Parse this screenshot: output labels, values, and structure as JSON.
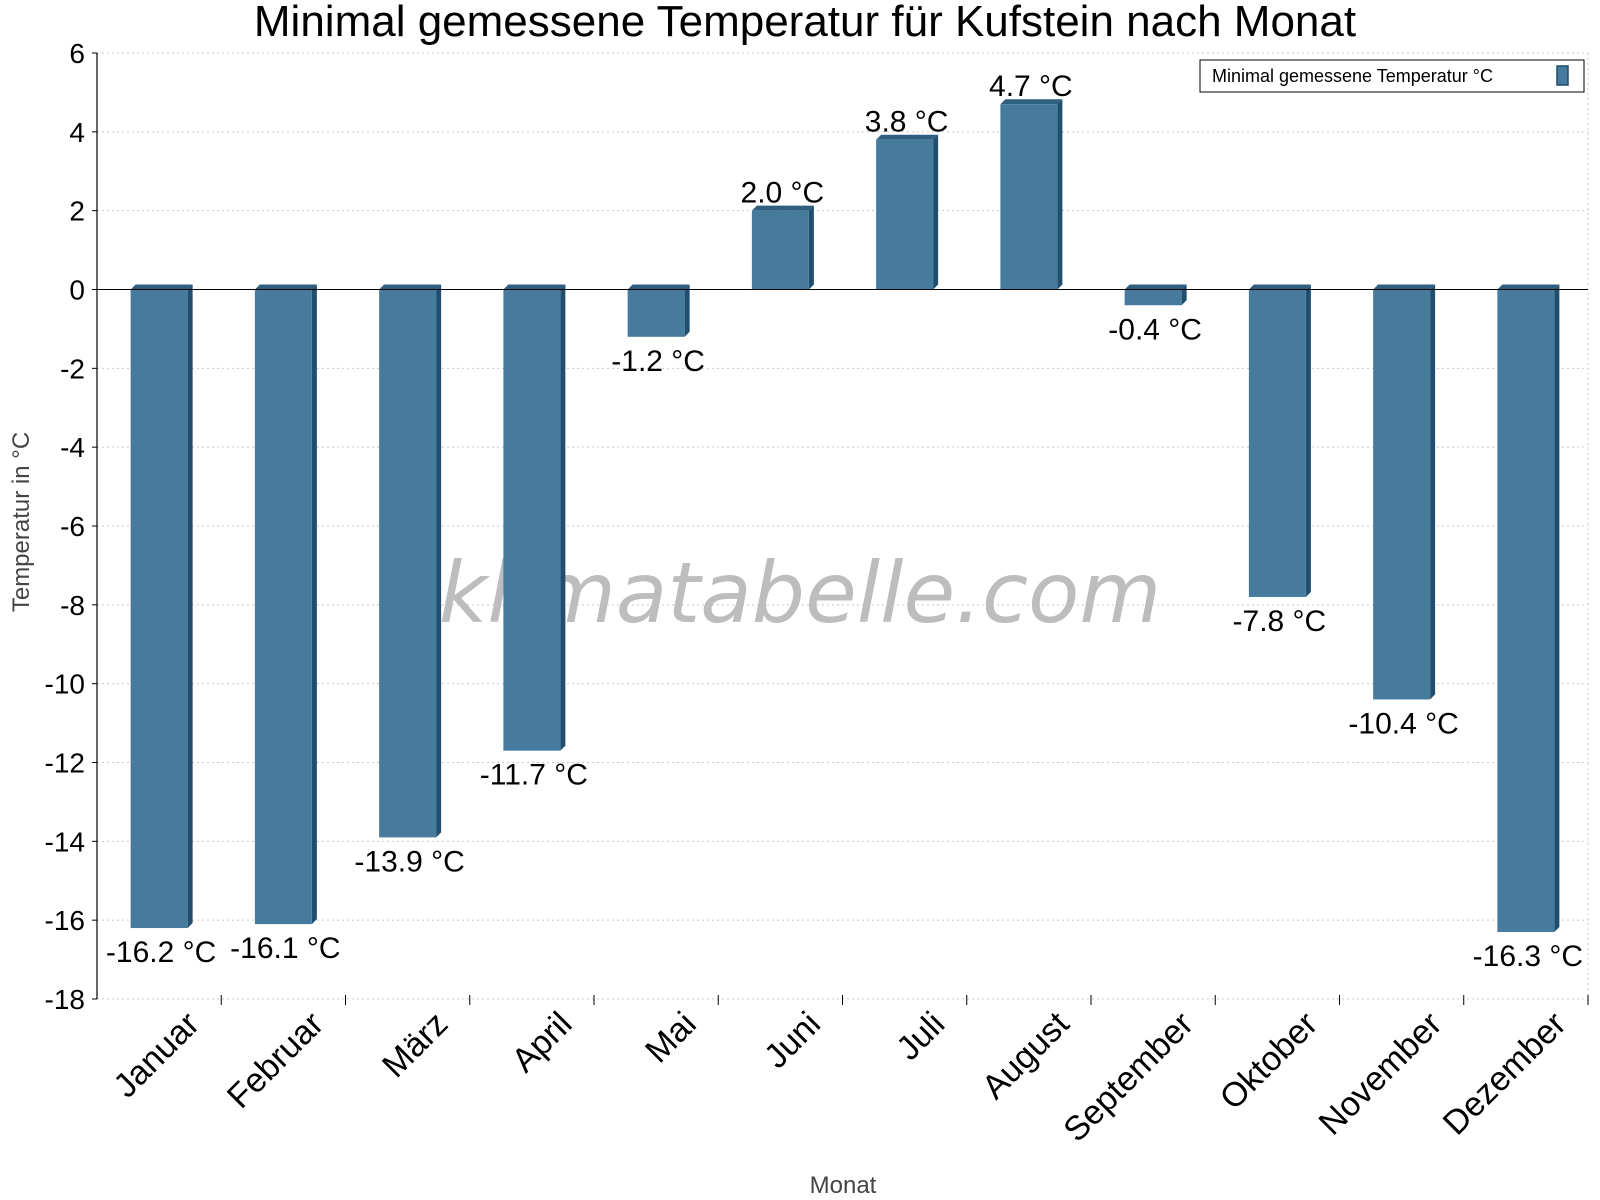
{
  "watermark": "klimatabelle.com",
  "colors": {
    "bar_face": "#467b9e",
    "bar_side": "#1f4e6e",
    "bar_top": "#2f5f80",
    "grid": "#c8c8c8"
  },
  "chart_data": {
    "type": "bar",
    "title": "Minimal gemessene Temperatur für Kufstein nach Monat",
    "xlabel": "Monat",
    "ylabel": "Temperatur in °C",
    "ylim": [
      -18,
      6
    ],
    "yticks": [
      6,
      4,
      2,
      0,
      -2,
      -4,
      -6,
      -8,
      -10,
      -12,
      -14,
      -16,
      -18
    ],
    "ytick_labels": [
      "6",
      "4",
      "2",
      "0",
      "-2",
      "-4",
      "-6",
      "-8",
      "-10",
      "-12",
      "-14",
      "-16",
      "-18"
    ],
    "grid": true,
    "legend_position": "top-right",
    "categories": [
      "Januar",
      "Februar",
      "März",
      "April",
      "Mai",
      "Juni",
      "Juli",
      "August",
      "September",
      "Oktober",
      "November",
      "Dezember"
    ],
    "series": [
      {
        "name": "Minimal gemessene Temperatur °C",
        "values": [
          -16.2,
          -16.1,
          -13.9,
          -11.7,
          -1.2,
          2.0,
          3.8,
          4.7,
          -0.4,
          -7.8,
          -10.4,
          -16.3
        ],
        "labels": [
          "-16.2 °C",
          "-16.1 °C",
          "-13.9 °C",
          "-11.7 °C",
          "-1.2 °C",
          "2.0 °C",
          "3.8 °C",
          "4.7 °C",
          "-0.4 °C",
          "-7.8 °C",
          "-10.4 °C",
          "-16.3 °C"
        ]
      }
    ]
  }
}
